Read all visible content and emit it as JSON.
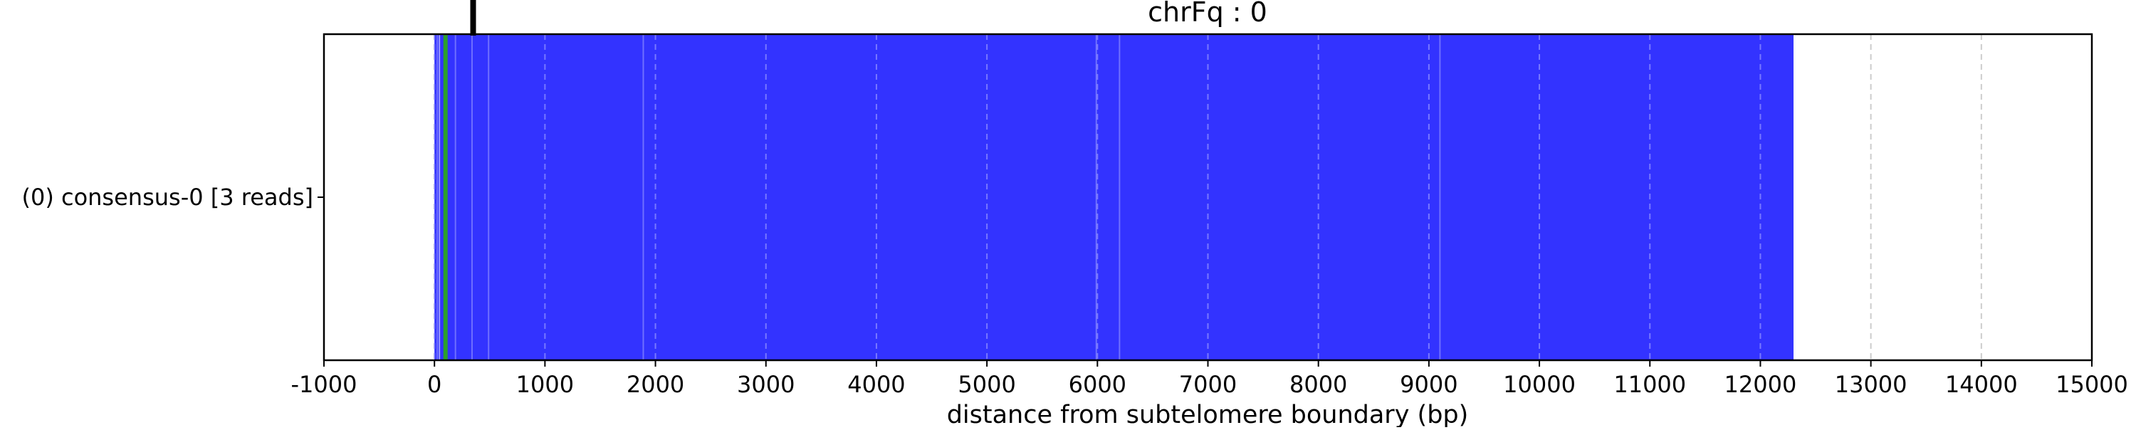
{
  "chart_data": {
    "type": "bar",
    "orientation": "horizontal",
    "title": "chrFq : 0",
    "xlabel": "distance from subtelomere boundary (bp)",
    "ylabel": "",
    "xlim": [
      -1000,
      15000
    ],
    "xticks": [
      -1000,
      0,
      1000,
      2000,
      3000,
      4000,
      5000,
      6000,
      7000,
      8000,
      9000,
      10000,
      11000,
      12000,
      13000,
      14000,
      15000
    ],
    "grid": "x dashed",
    "categories": [
      "(0) consensus-0 [3 reads]"
    ],
    "bar": {
      "start": 0,
      "end": 12300,
      "color": "#3333ff"
    },
    "stripes": [
      {
        "x": 25,
        "color": "#6f6fff"
      },
      {
        "x": 45,
        "color": "#9a9aff"
      },
      {
        "x": 100,
        "color": "#2ca02c"
      },
      {
        "x": 190,
        "color": "#6f6fff"
      },
      {
        "x": 340,
        "color": "#6f6fff"
      },
      {
        "x": 490,
        "color": "#6f6fff"
      },
      {
        "x": 1890,
        "color": "#6f6fff"
      },
      {
        "x": 5990,
        "color": "#6f6fff"
      },
      {
        "x": 6200,
        "color": "#6f6fff"
      },
      {
        "x": 9100,
        "color": "#6f6fff"
      }
    ],
    "marker": {
      "x": 350,
      "color": "#000000"
    }
  }
}
